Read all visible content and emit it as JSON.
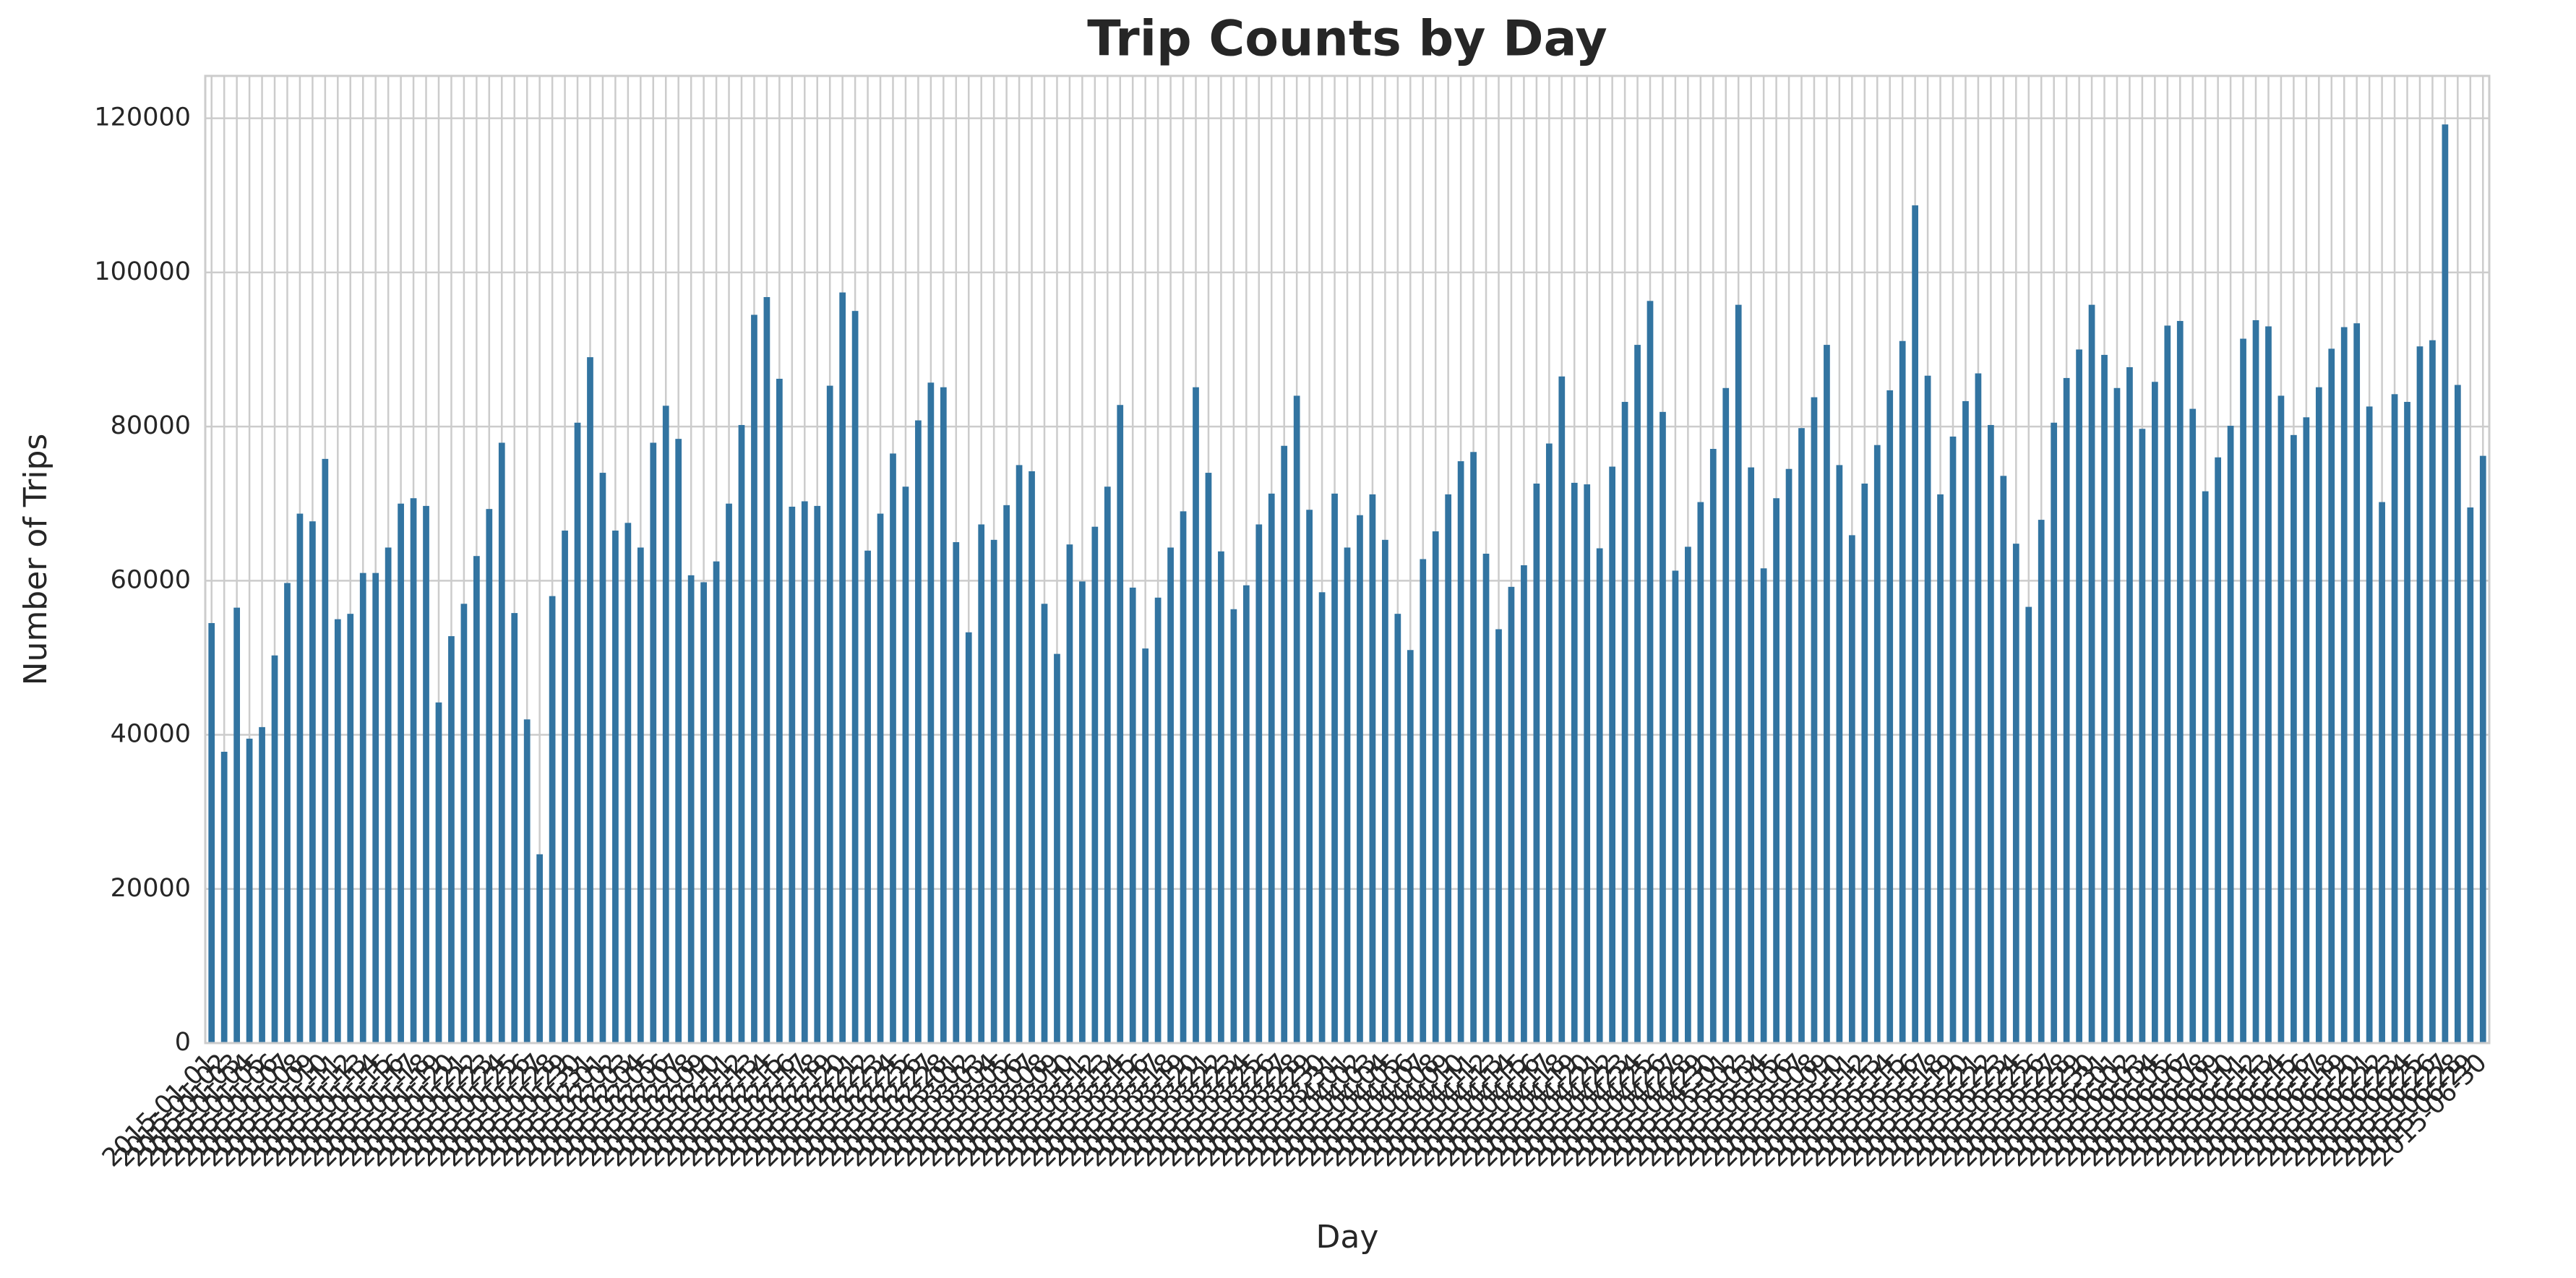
{
  "chart_data": {
    "type": "bar",
    "title": "Trip Counts by Day",
    "xlabel": "Day",
    "ylabel": "Number of Trips",
    "categories": [
      "2015-01-01",
      "2015-01-02",
      "2015-01-03",
      "2015-01-04",
      "2015-01-05",
      "2015-01-06",
      "2015-01-07",
      "2015-01-08",
      "2015-01-09",
      "2015-01-10",
      "2015-01-11",
      "2015-01-12",
      "2015-01-13",
      "2015-01-14",
      "2015-01-15",
      "2015-01-16",
      "2015-01-17",
      "2015-01-18",
      "2015-01-19",
      "2015-01-20",
      "2015-01-21",
      "2015-01-22",
      "2015-01-23",
      "2015-01-24",
      "2015-01-25",
      "2015-01-26",
      "2015-01-27",
      "2015-01-28",
      "2015-01-29",
      "2015-01-30",
      "2015-01-31",
      "2015-02-01",
      "2015-02-02",
      "2015-02-03",
      "2015-02-04",
      "2015-02-05",
      "2015-02-06",
      "2015-02-07",
      "2015-02-08",
      "2015-02-09",
      "2015-02-10",
      "2015-02-11",
      "2015-02-12",
      "2015-02-13",
      "2015-02-14",
      "2015-02-15",
      "2015-02-16",
      "2015-02-17",
      "2015-02-18",
      "2015-02-19",
      "2015-02-20",
      "2015-02-21",
      "2015-02-22",
      "2015-02-23",
      "2015-02-24",
      "2015-02-25",
      "2015-02-26",
      "2015-02-27",
      "2015-02-28",
      "2015-03-01",
      "2015-03-02",
      "2015-03-03",
      "2015-03-04",
      "2015-03-05",
      "2015-03-06",
      "2015-03-07",
      "2015-03-08",
      "2015-03-09",
      "2015-03-10",
      "2015-03-11",
      "2015-03-12",
      "2015-03-13",
      "2015-03-14",
      "2015-03-15",
      "2015-03-16",
      "2015-03-17",
      "2015-03-18",
      "2015-03-19",
      "2015-03-20",
      "2015-03-21",
      "2015-03-22",
      "2015-03-23",
      "2015-03-24",
      "2015-03-25",
      "2015-03-26",
      "2015-03-27",
      "2015-03-28",
      "2015-03-29",
      "2015-03-30",
      "2015-03-31",
      "2015-04-01",
      "2015-04-02",
      "2015-04-03",
      "2015-04-04",
      "2015-04-05",
      "2015-04-06",
      "2015-04-07",
      "2015-04-08",
      "2015-04-09",
      "2015-04-10",
      "2015-04-11",
      "2015-04-12",
      "2015-04-13",
      "2015-04-14",
      "2015-04-15",
      "2015-04-16",
      "2015-04-17",
      "2015-04-18",
      "2015-04-19",
      "2015-04-20",
      "2015-04-21",
      "2015-04-22",
      "2015-04-23",
      "2015-04-24",
      "2015-04-25",
      "2015-04-26",
      "2015-04-27",
      "2015-04-28",
      "2015-04-29",
      "2015-04-30",
      "2015-05-01",
      "2015-05-02",
      "2015-05-03",
      "2015-05-04",
      "2015-05-05",
      "2015-05-06",
      "2015-05-07",
      "2015-05-08",
      "2015-05-09",
      "2015-05-10",
      "2015-05-11",
      "2015-05-12",
      "2015-05-13",
      "2015-05-14",
      "2015-05-15",
      "2015-05-16",
      "2015-05-17",
      "2015-05-18",
      "2015-05-19",
      "2015-05-20",
      "2015-05-21",
      "2015-05-22",
      "2015-05-23",
      "2015-05-24",
      "2015-05-25",
      "2015-05-26",
      "2015-05-27",
      "2015-05-28",
      "2015-05-29",
      "2015-05-30",
      "2015-05-31",
      "2015-06-01",
      "2015-06-02",
      "2015-06-03",
      "2015-06-04",
      "2015-06-05",
      "2015-06-06",
      "2015-06-07",
      "2015-06-08",
      "2015-06-09",
      "2015-06-10",
      "2015-06-11",
      "2015-06-12",
      "2015-06-13",
      "2015-06-14",
      "2015-06-15",
      "2015-06-16",
      "2015-06-17",
      "2015-06-18",
      "2015-06-19",
      "2015-06-20",
      "2015-06-21",
      "2015-06-22",
      "2015-06-23",
      "2015-06-24",
      "2015-06-25",
      "2015-06-26",
      "2015-06-27",
      "2015-06-28",
      "2015-06-29",
      "2015-06-30"
    ],
    "values": [
      54500,
      37800,
      56500,
      39500,
      41000,
      50300,
      59700,
      68700,
      67700,
      75800,
      55000,
      55700,
      61000,
      61000,
      64300,
      70000,
      70700,
      69700,
      44200,
      52800,
      57000,
      63200,
      69300,
      77900,
      55800,
      42000,
      24500,
      58000,
      66500,
      80500,
      89000,
      74000,
      66500,
      67500,
      64300,
      77900,
      82700,
      78400,
      60700,
      59800,
      62500,
      70000,
      80200,
      94500,
      96800,
      86200,
      69600,
      70300,
      69700,
      85300,
      97400,
      95000,
      63900,
      68700,
      76500,
      72200,
      80800,
      85700,
      85100,
      65000,
      53300,
      67300,
      65300,
      69800,
      75000,
      74200,
      57000,
      50500,
      64700,
      59900,
      67000,
      72200,
      82800,
      59100,
      51200,
      57800,
      64300,
      69000,
      85100,
      74000,
      63800,
      56300,
      59400,
      67300,
      71300,
      77500,
      84000,
      69200,
      58500,
      71300,
      64300,
      68500,
      71200,
      65300,
      55700,
      51000,
      62800,
      66400,
      71200,
      75500,
      76700,
      63500,
      53700,
      59200,
      62000,
      72600,
      77800,
      86500,
      72700,
      72500,
      64200,
      74800,
      83200,
      90600,
      96300,
      81900,
      61300,
      64400,
      70200,
      77100,
      85000,
      95800,
      74700,
      61600,
      70700,
      74500,
      79800,
      83800,
      90600,
      75000,
      65900,
      72600,
      77600,
      84700,
      91100,
      108700,
      86600,
      71200,
      78700,
      83300,
      86900,
      80200,
      73600,
      64800,
      56600,
      67900,
      80500,
      86300,
      90000,
      95800,
      89300,
      85000,
      87700,
      79700,
      85800,
      93100,
      93700,
      82300,
      71600,
      76000,
      80100,
      91400,
      93800,
      93000,
      84000,
      78900,
      81200,
      85100,
      90100,
      92900,
      93400,
      82600,
      70200,
      84200,
      83200,
      90400,
      91200,
      119200,
      85400,
      69500,
      76200
    ],
    "color": "#3274a1",
    "ylim": [
      0,
      125500
    ],
    "yticks": [
      0,
      20000,
      40000,
      60000,
      80000,
      100000,
      120000
    ],
    "grid": true
  }
}
